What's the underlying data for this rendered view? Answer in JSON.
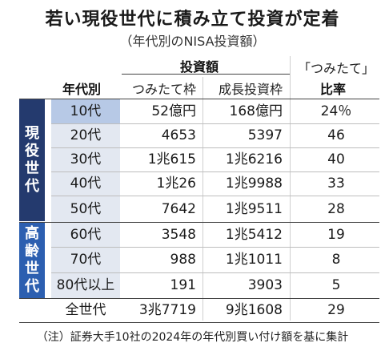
{
  "title": "若い現役世代に積み立て投資が定着",
  "subtitle": "（年代別のNISA投資額）",
  "headers": {
    "investment": "投資額",
    "generation": "年代別",
    "tsumitate": "つみたて枠",
    "seicho": "成長投資枠",
    "ratio_top": "「つみたて」",
    "ratio_bottom": "比率"
  },
  "groups": {
    "current": [
      "現",
      "役",
      "世",
      "代"
    ],
    "elder": [
      "高",
      "齢",
      "世",
      "代"
    ]
  },
  "rows": [
    {
      "gen": "10代",
      "tsumitate": "52億円",
      "seicho": "168億円",
      "ratio": "24％"
    },
    {
      "gen": "20代",
      "tsumitate": "4653",
      "seicho": "5397",
      "ratio": "46"
    },
    {
      "gen": "30代",
      "tsumitate": "1兆615",
      "seicho": "1兆6216",
      "ratio": "40"
    },
    {
      "gen": "40代",
      "tsumitate": "1兆26",
      "seicho": "1兆9988",
      "ratio": "33"
    },
    {
      "gen": "50代",
      "tsumitate": "7642",
      "seicho": "1兆9511",
      "ratio": "28"
    },
    {
      "gen": "60代",
      "tsumitate": "3548",
      "seicho": "1兆5412",
      "ratio": "19"
    },
    {
      "gen": "70代",
      "tsumitate": "988",
      "seicho": "1兆1011",
      "ratio": "8"
    },
    {
      "gen": "80代以上",
      "tsumitate": "191",
      "seicho": "3903",
      "ratio": "5"
    }
  ],
  "total": {
    "gen": "全世代",
    "tsumitate": "3兆7719",
    "seicho": "9兆1608",
    "ratio": "29"
  },
  "note": "（注）証券大手10社の2024年の年代別買い付け額を基に集計",
  "colors": {
    "current_group": "#243a6e",
    "elder_group": "#2c5fb0",
    "gen_highlight": "#b7c9e6",
    "gen_cell": "#e3e8f1"
  }
}
